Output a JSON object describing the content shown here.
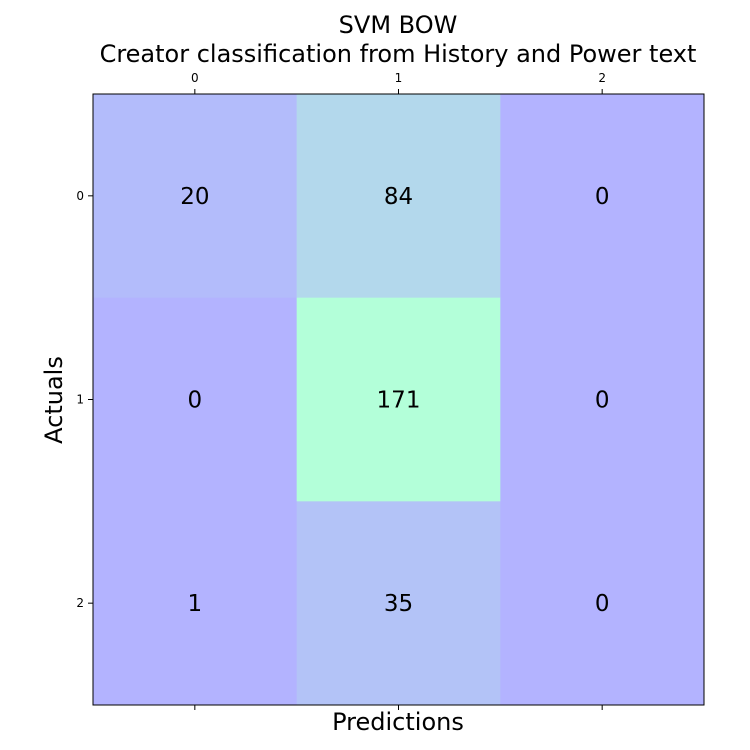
{
  "chart_data": {
    "type": "heatmap",
    "title": "SVM BOW",
    "subtitle": "Creator classification from History and Power text",
    "xlabel": "Predictions",
    "ylabel": "Actuals",
    "x_categories": [
      "0",
      "1",
      "2"
    ],
    "y_categories": [
      "0",
      "1",
      "2"
    ],
    "values": [
      [
        20,
        84,
        0
      ],
      [
        0,
        171,
        0
      ],
      [
        1,
        35,
        0
      ]
    ],
    "colormap": {
      "low": "#b3b3ff",
      "high": "#b3ffd9"
    },
    "cell_labels": true
  }
}
